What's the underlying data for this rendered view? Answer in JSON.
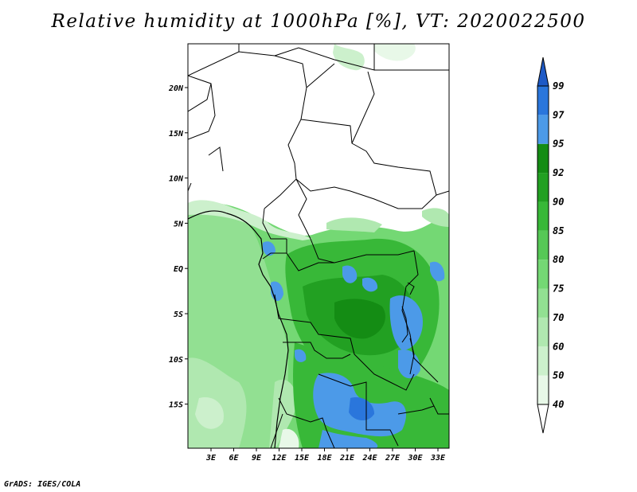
{
  "title": "Relative humidity at 1000hPa [%], VT: 2020022500",
  "footer": "GrADS: IGES/COLA",
  "map": {
    "lon_labels": [
      "3E",
      "6E",
      "9E",
      "12E",
      "15E",
      "18E",
      "21E",
      "24E",
      "27E",
      "30E",
      "33E"
    ],
    "lat_labels": [
      "20N",
      "15N",
      "10N",
      "5N",
      "EQ",
      "5S",
      "10S",
      "15S"
    ]
  },
  "colorbar": {
    "levels": [
      "40",
      "50",
      "60",
      "70",
      "75",
      "80",
      "85",
      "90",
      "92",
      "95",
      "97",
      "99"
    ],
    "colors": [
      "#ffffff",
      "#e8f8e8",
      "#ccf0cc",
      "#b0e8b0",
      "#92e092",
      "#74d874",
      "#56c856",
      "#38b838",
      "#22a022",
      "#148c14",
      "#4c9ae8",
      "#2a76dc",
      "#1e5ac6"
    ]
  }
}
